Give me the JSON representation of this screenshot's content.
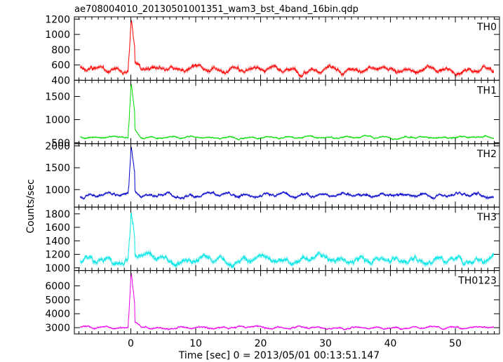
{
  "chart_data": {
    "type": "line",
    "title": "ae708004010_20130501001351_wam3_bst_4band_16bin.qdp",
    "xlabel": "Time [sec] 0 = 2013/05/01 00:13:51.147",
    "ylabel": "Counts/sec",
    "xlim": [
      -8.7,
      56.8
    ],
    "x_ticks": [
      0,
      10,
      20,
      30,
      40,
      50
    ],
    "x_tick_labels": [
      "0",
      "10",
      "20",
      "30",
      "40",
      "50"
    ],
    "error_bars": true,
    "sample_interval_sec": 0.0625,
    "panels": [
      {
        "name": "TH0",
        "color": "#ff0000",
        "ylim": [
          400,
          1230
        ],
        "y_ticks": [
          400,
          600,
          800,
          1000,
          1200
        ],
        "y_tick_labels": [
          "400",
          "600",
          "800",
          "1000",
          "1200"
        ],
        "baseline": 540,
        "noise": 40,
        "burst_peak": 1200,
        "burst_start": -0.4,
        "burst_end": 0.6
      },
      {
        "name": "TH1",
        "color": "#00dd00",
        "ylim": [
          480,
          1850
        ],
        "y_ticks": [
          500,
          1000,
          1500
        ],
        "y_tick_labels": [
          "500",
          "1000",
          "1500"
        ],
        "baseline": 620,
        "noise": 25,
        "burst_peak": 1800,
        "burst_start": -0.4,
        "burst_end": 0.6
      },
      {
        "name": "TH2",
        "color": "#0000cc",
        "ylim": [
          600,
          2050
        ],
        "y_ticks": [
          1000,
          1500,
          2000
        ],
        "y_tick_labels": [
          "1000",
          "1500",
          "2000"
        ],
        "baseline": 880,
        "noise": 45,
        "burst_peak": 2000,
        "burst_start": -0.4,
        "burst_end": 0.6
      },
      {
        "name": "TH3",
        "color": "#00e5e5",
        "ylim": [
          960,
          1900
        ],
        "y_ticks": [
          1000,
          1200,
          1400,
          1600,
          1800
        ],
        "y_tick_labels": [
          "1000",
          "1200",
          "1400",
          "1600",
          "1800"
        ],
        "baseline": 1120,
        "noise": 55,
        "burst_peak": 1850,
        "burst_start": -0.4,
        "burst_end": 0.6
      },
      {
        "name": "TH0123",
        "color": "#ee00ee",
        "ylim": [
          2550,
          7100
        ],
        "y_ticks": [
          3000,
          4000,
          5000,
          6000
        ],
        "y_tick_labels": [
          "3000",
          "4000",
          "5000",
          "6000"
        ],
        "baseline": 3000,
        "noise": 90,
        "burst_peak": 7000,
        "burst_start": -0.4,
        "burst_end": 0.6
      }
    ]
  }
}
